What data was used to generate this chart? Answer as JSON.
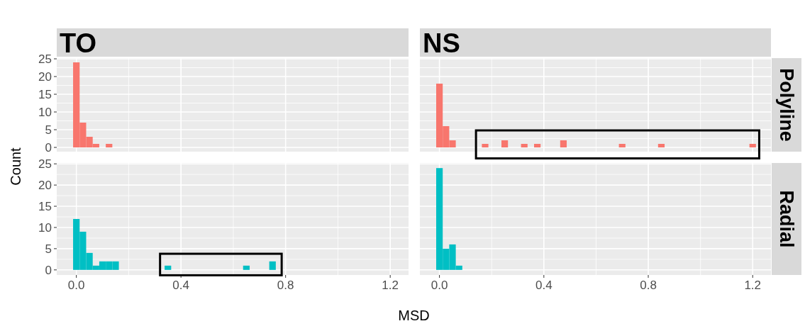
{
  "chart_data": [
    {
      "type": "histogram",
      "title": "TO",
      "ylabel": "Count",
      "bins": [
        -0.0125,
        0.0125,
        0.0375,
        0.0625,
        0.0875,
        0.1125,
        0.1375
      ],
      "values": [
        24,
        7,
        3,
        1,
        0,
        1
      ],
      "color": "#f8766d",
      "xlim": [
        -0.075,
        1.27
      ],
      "ylim": [
        -1.2,
        25.2
      ],
      "xticks": [
        0,
        0.4,
        0.8,
        1.2
      ],
      "yticks": [
        0,
        5,
        10,
        15,
        20,
        25
      ],
      "grid": true,
      "tick_labels": "y"
    },
    {
      "type": "histogram",
      "title": "NS",
      "annotations": [
        "Polyline"
      ],
      "bins": [
        -0.0125,
        0.0125,
        0.0375,
        0.0625,
        0.0875,
        0.1125,
        0.1375,
        0.1625,
        0.1875,
        0.2125,
        0.2375,
        0.2625,
        0.2875,
        0.3125,
        0.3375,
        0.3625,
        0.3875,
        0.4125,
        0.4375,
        0.4625,
        0.4875,
        0.5125,
        0.5375,
        0.5625,
        0.5875,
        0.6125,
        0.6375,
        0.6625,
        0.6875,
        0.7125,
        0.7375,
        0.7625,
        0.7875,
        0.8125,
        0.8375,
        0.8625,
        0.8875,
        0.9125,
        0.9375,
        0.9625,
        0.9875,
        1.0125,
        1.0375,
        1.0625,
        1.0875,
        1.1125,
        1.1375,
        1.1625,
        1.1875,
        1.2125
      ],
      "values": [
        18,
        6,
        2,
        0,
        0,
        0,
        0,
        1,
        0,
        0,
        2,
        0,
        0,
        1,
        0,
        1,
        0,
        0,
        0,
        2,
        0,
        0,
        0,
        0,
        0,
        0,
        0,
        0,
        1,
        0,
        0,
        0,
        0,
        0,
        1,
        0,
        0,
        0,
        0,
        0,
        0,
        0,
        0,
        0,
        0,
        0,
        0,
        0,
        1
      ],
      "color": "#f8766d",
      "xlim": [
        -0.075,
        1.27
      ],
      "ylim": [
        -1.2,
        25.2
      ],
      "xticks": [
        0,
        0.4,
        0.8,
        1.2
      ],
      "yticks": [
        0,
        5,
        10,
        15,
        20,
        25
      ],
      "grid": true,
      "tick_labels": false
    },
    {
      "type": "histogram",
      "xlabel": "MSD",
      "bins": [
        -0.0125,
        0.0125,
        0.0375,
        0.0625,
        0.0875,
        0.1125,
        0.1375,
        0.1625,
        0.1875,
        0.2125,
        0.2375,
        0.2625,
        0.2875,
        0.3125,
        0.3375,
        0.3625,
        0.3875,
        0.4125,
        0.4375,
        0.4625,
        0.4875,
        0.5125,
        0.5375,
        0.5625,
        0.5875,
        0.6125,
        0.6375,
        0.6625,
        0.6875,
        0.7125,
        0.7375,
        0.7625
      ],
      "values": [
        12,
        9,
        4,
        1,
        2,
        2,
        2,
        0,
        0,
        0,
        0,
        0,
        0,
        0,
        1,
        0,
        0,
        0,
        0,
        0,
        0,
        0,
        0,
        0,
        0,
        0,
        1,
        0,
        0,
        0,
        2
      ],
      "color": "#00bfc4",
      "xlim": [
        -0.075,
        1.27
      ],
      "ylim": [
        -1.2,
        25.2
      ],
      "xticks": [
        {
          "value": 0,
          "label": "0.0"
        },
        {
          "value": 0.4,
          "label": "0.4"
        },
        {
          "value": 0.8,
          "label": "0.8"
        },
        {
          "value": 1.2,
          "label": "1.2"
        }
      ],
      "yticks": [
        0,
        5,
        10,
        15,
        20,
        25
      ],
      "grid": true
    },
    {
      "type": "histogram",
      "annotations": [
        "Radial"
      ],
      "bins": [
        -0.0125,
        0.0125,
        0.0375,
        0.0625,
        0.0875
      ],
      "values": [
        24,
        5,
        6,
        1
      ],
      "color": "#00bfc4",
      "xlim": [
        -0.075,
        1.27
      ],
      "ylim": [
        -1.2,
        25.2
      ],
      "xticks": [
        {
          "value": 0,
          "label": "0.0"
        },
        {
          "value": 0.4,
          "label": "0.4"
        },
        {
          "value": 0.8,
          "label": "0.8"
        },
        {
          "value": 1.2,
          "label": "1.2"
        }
      ],
      "yticks": [
        0,
        5,
        10,
        15,
        20,
        25
      ],
      "grid": true,
      "tick_labels": "x"
    }
  ]
}
